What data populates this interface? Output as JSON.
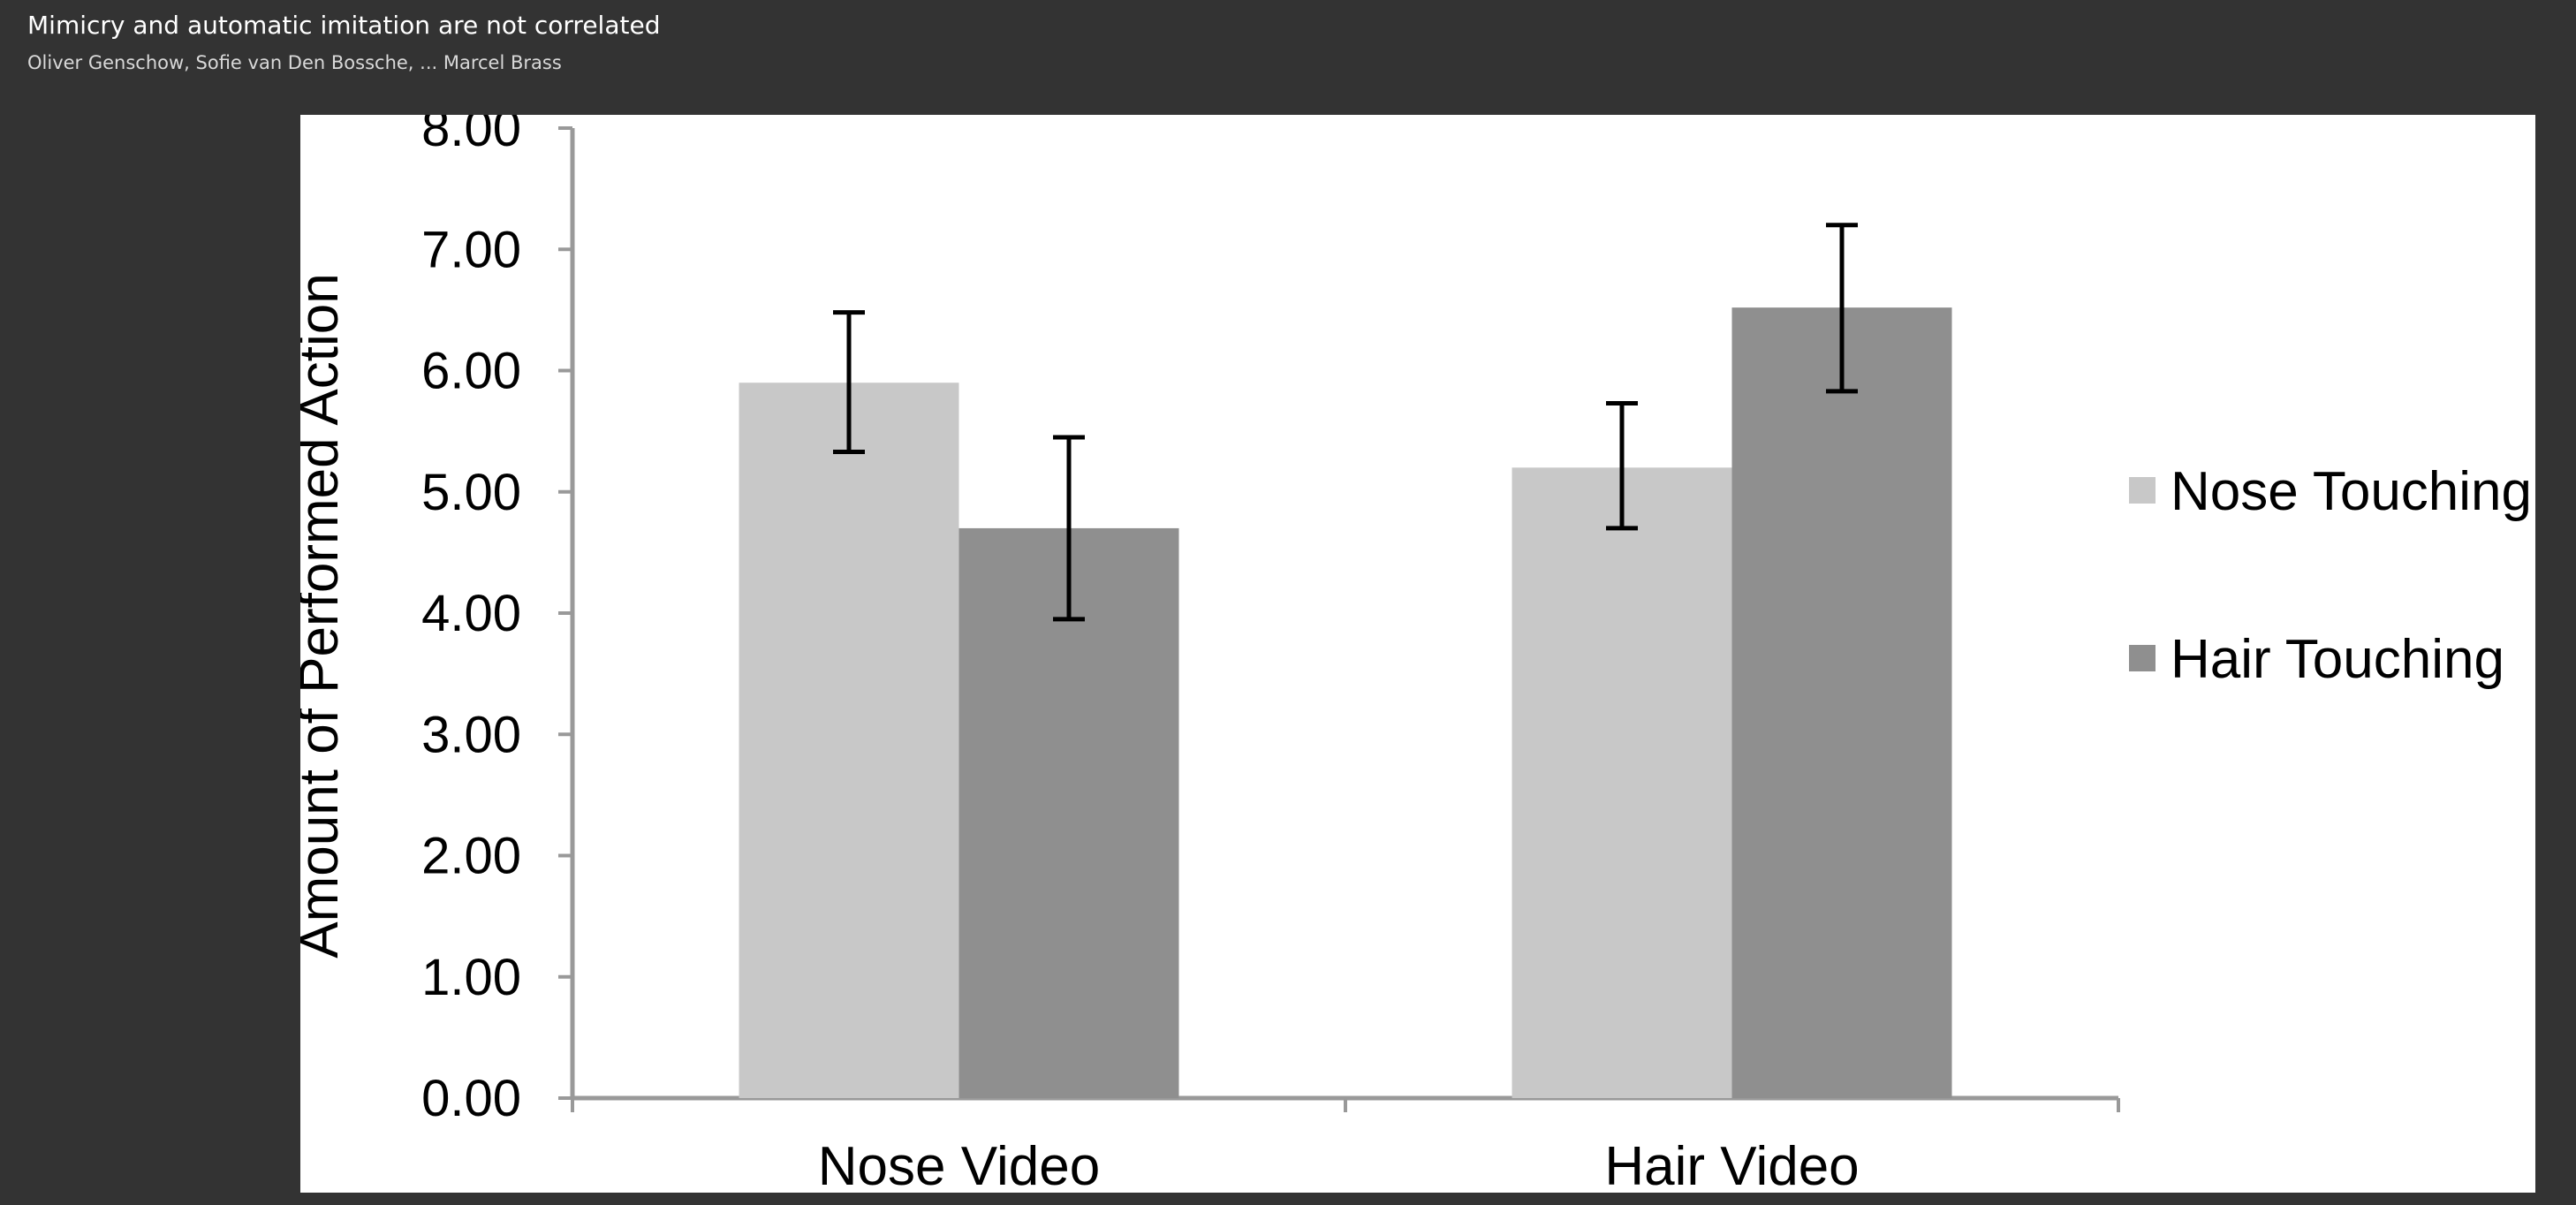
{
  "viewer": {
    "title": "Mimicry and automatic imitation are not correlated",
    "authors": "Oliver Genschow,  Sofie van Den Bossche,  ... Marcel Brass"
  },
  "chart_data": {
    "type": "bar",
    "title": "",
    "xlabel": "",
    "ylabel": "Amount of Performed Action",
    "categories": [
      "Nose Video",
      "Hair Video"
    ],
    "ylim": [
      0,
      8
    ],
    "yticks": [
      "0.00",
      "1.00",
      "2.00",
      "3.00",
      "4.00",
      "5.00",
      "6.00",
      "7.00",
      "8.00"
    ],
    "grid": false,
    "legend_position": "right",
    "series": [
      {
        "name": "Nose Touching",
        "color": "#c8c8c8",
        "values": [
          5.9,
          5.2
        ],
        "error_low": [
          5.33,
          4.7
        ],
        "error_high": [
          6.48,
          5.73
        ]
      },
      {
        "name": "Hair Touching",
        "color": "#8f8f8f",
        "values": [
          4.7,
          6.52
        ],
        "error_low": [
          3.95,
          5.83
        ],
        "error_high": [
          5.45,
          7.2
        ]
      }
    ]
  }
}
